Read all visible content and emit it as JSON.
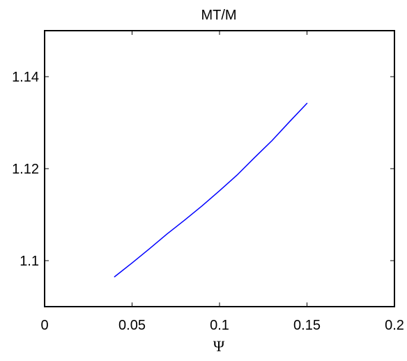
{
  "chart_data": {
    "type": "line",
    "title": "MT/M",
    "xlabel": "Ψ",
    "ylabel": "",
    "xlim": [
      0,
      0.2
    ],
    "ylim": [
      1.09,
      1.15
    ],
    "xticks": [
      0,
      0.05,
      0.1,
      0.15,
      0.2
    ],
    "xtick_labels": [
      "0",
      "0.05",
      "0.1",
      "0.15",
      "0.2"
    ],
    "yticks": [
      1.1,
      1.12,
      1.14
    ],
    "ytick_labels": [
      "1.1",
      "1.12",
      "1.14"
    ],
    "grid": false,
    "series": [
      {
        "color": "#0000ff",
        "x": [
          0.04,
          0.05,
          0.06,
          0.07,
          0.08,
          0.09,
          0.1,
          0.11,
          0.12,
          0.13,
          0.14,
          0.15
        ],
        "y": [
          1.0965,
          1.0995,
          1.1026,
          1.1058,
          1.1088,
          1.1119,
          1.1152,
          1.1186,
          1.1224,
          1.1261,
          1.1302,
          1.1342
        ]
      }
    ]
  }
}
